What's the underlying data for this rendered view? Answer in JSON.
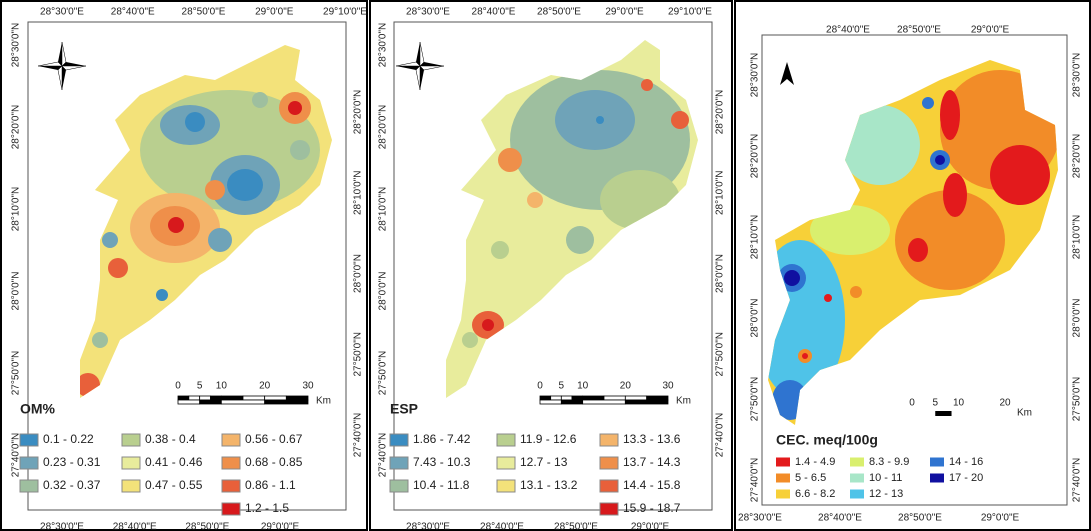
{
  "panels": [
    {
      "top_labels": [
        "28°30'0\"E",
        "28°40'0\"E",
        "28°50'0\"E",
        "29°0'0\"E",
        "29°10'0\"E"
      ],
      "left_labels": [
        "28°30'0\"N",
        "28°20'0\"N",
        "28°10'0\"N",
        "28°0'0\"N",
        "27°50'0\"N",
        "27°40'0\"N"
      ],
      "right_labels": [
        "28°20'0\"N",
        "28°10'0\"N",
        "28°0'0\"N",
        "27°50'0\"N",
        "27°40'0\"N"
      ],
      "bottom_labels": [
        "28°30'0\"E",
        "28°40'0\"E",
        "28°50'0\"E",
        "29°0'0\"E"
      ],
      "scale": {
        "ticks": [
          0,
          5,
          10,
          20,
          30
        ],
        "unit": "Km"
      },
      "legend": {
        "title": "OM%",
        "columns": [
          [
            {
              "label": "0.1 - 0.22",
              "color": "#3a8cc1"
            },
            {
              "label": "0.23 - 0.31",
              "color": "#6fa3b8"
            },
            {
              "label": "0.32 - 0.37",
              "color": "#9ebf9f"
            }
          ],
          [
            {
              "label": "0.38 - 0.4",
              "color": "#b9cf8f"
            },
            {
              "label": "0.41 - 0.46",
              "color": "#e8ec9c"
            },
            {
              "label": "0.47 - 0.55",
              "color": "#f3e27a"
            }
          ],
          [
            {
              "label": "0.56 - 0.67",
              "color": "#f4b46a"
            },
            {
              "label": "0.68 - 0.85",
              "color": "#ef8f4a"
            },
            {
              "label": "0.86 - 1.1",
              "color": "#e8603a"
            },
            {
              "label": "1.2 - 1.5",
              "color": "#d7191c"
            }
          ]
        ]
      }
    },
    {
      "top_labels": [
        "28°30'0\"E",
        "28°40'0\"E",
        "28°50'0\"E",
        "29°0'0\"E",
        "29°10'0\"E"
      ],
      "left_labels": [
        "28°30'0\"N",
        "28°20'0\"N",
        "28°10'0\"N",
        "28°0'0\"N",
        "27°50'0\"N",
        "27°40'0\"N"
      ],
      "right_labels": [
        "28°20'0\"N",
        "28°10'0\"N",
        "28°0'0\"N",
        "27°50'0\"N",
        "27°40'0\"N"
      ],
      "bottom_labels": [
        "28°30'0\"E",
        "28°40'0\"E",
        "28°50'0\"E",
        "29°0'0\"E"
      ],
      "scale": {
        "ticks": [
          0,
          5,
          10,
          20,
          30
        ],
        "unit": "Km"
      },
      "legend": {
        "title": "ESP",
        "columns": [
          [
            {
              "label": "1.86 - 7.42",
              "color": "#3a8cc1"
            },
            {
              "label": "7.43 - 10.3",
              "color": "#6fa3b8"
            },
            {
              "label": "10.4 - 11.8",
              "color": "#9ebf9f"
            }
          ],
          [
            {
              "label": "11.9 - 12.6",
              "color": "#b9cf8f"
            },
            {
              "label": "12.7 - 13",
              "color": "#e8ec9c"
            },
            {
              "label": "13.1 - 13.2",
              "color": "#f3e27a"
            }
          ],
          [
            {
              "label": "13.3 - 13.6",
              "color": "#f4b46a"
            },
            {
              "label": "13.7 - 14.3",
              "color": "#ef8f4a"
            },
            {
              "label": "14.4 - 15.8",
              "color": "#e8603a"
            },
            {
              "label": "15.9 - 18.7",
              "color": "#d7191c"
            }
          ]
        ]
      }
    },
    {
      "top_labels": [
        "28°40'0\"E",
        "28°50'0\"E",
        "29°0'0\"E"
      ],
      "left_labels": [
        "28°30'0\"N",
        "28°20'0\"N",
        "28°10'0\"N",
        "28°0'0\"N",
        "27°50'0\"N",
        "27°40'0\"N"
      ],
      "right_labels": [
        "28°30'0\"N",
        "28°20'0\"N",
        "28°10'0\"N",
        "28°0'0\"N",
        "27°50'0\"N",
        "27°40'0\"N"
      ],
      "bottom_labels": [
        "28°30'0\"E",
        "28°40'0\"E",
        "28°50'0\"E",
        "29°0'0\"E"
      ],
      "scale": {
        "ticks": [
          0,
          5,
          10,
          20
        ],
        "unit": "Km"
      },
      "legend": {
        "title": "CEC. meq/100g",
        "columns": [
          [
            {
              "label": "1.4 - 4.9",
              "color": "#e31a1c"
            },
            {
              "label": "5 - 6.5",
              "color": "#f28c28"
            },
            {
              "label": "6.6 - 8.2",
              "color": "#f7d038"
            }
          ],
          [
            {
              "label": "8.3 - 9.9",
              "color": "#d9ef6e"
            },
            {
              "label": "10 - 11",
              "color": "#a8e6c8"
            },
            {
              "label": "12 - 13",
              "color": "#4fc3e8"
            }
          ],
          [
            {
              "label": "14 - 16",
              "color": "#2f74d0"
            },
            {
              "label": "17 - 20",
              "color": "#1010a0"
            }
          ]
        ]
      }
    }
  ]
}
